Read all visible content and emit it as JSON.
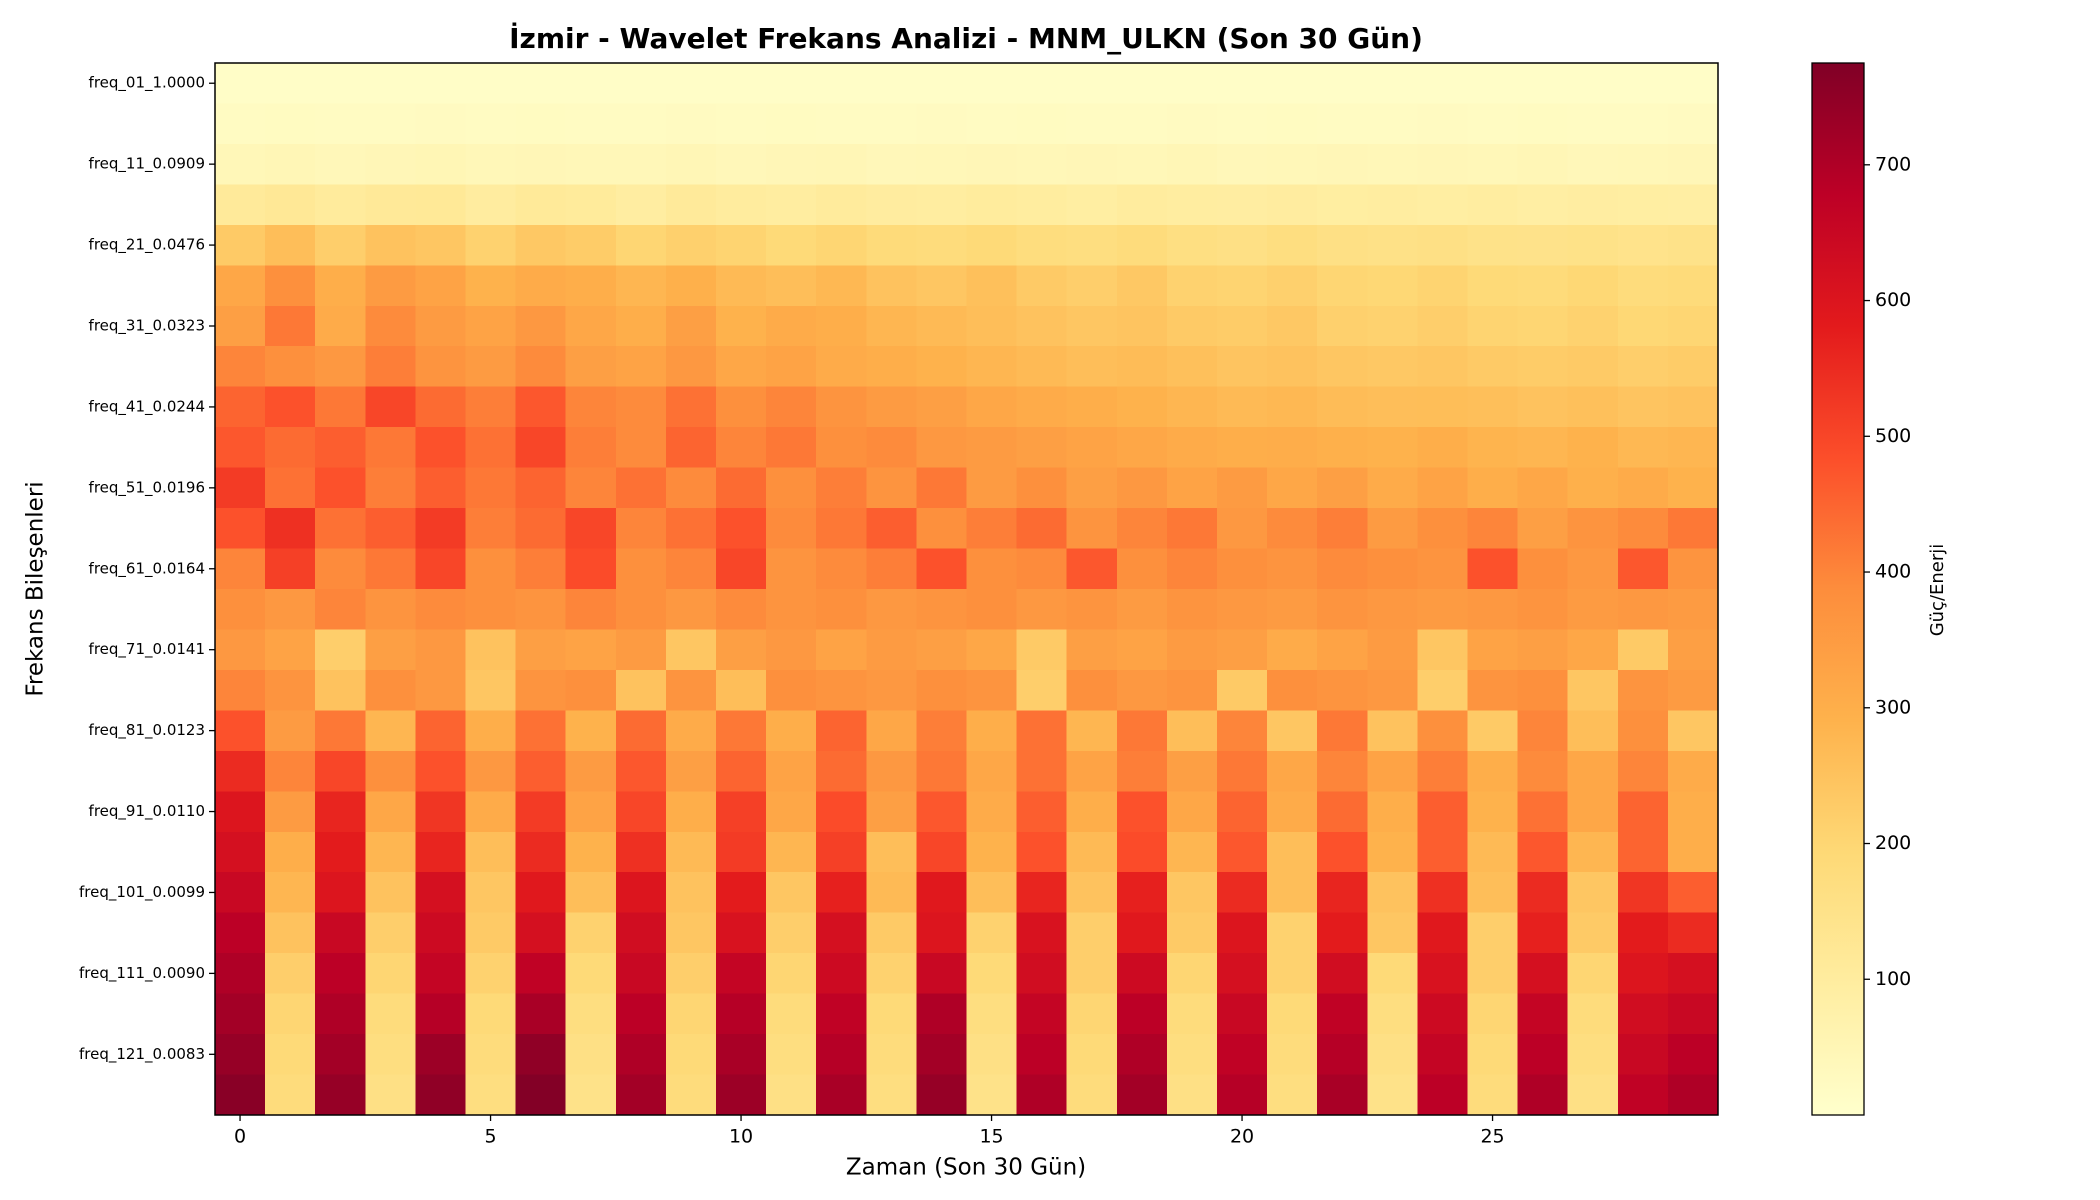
{
  "chart_data": {
    "type": "heatmap",
    "title": "İzmir - Wavelet Frekans Analizi - MNM_ULKN (Son 30 Gün)",
    "x_label": "Zaman (Son 30 Gün)",
    "y_label": "Frekans Bileşenleri",
    "colorbar_label": "Güç/Enerji",
    "colorscale": [
      "#ffffcc",
      "#ffeda0",
      "#fed976",
      "#feb24c",
      "#fd8d3c",
      "#fc4e2a",
      "#e31a1c",
      "#bd0026",
      "#800026"
    ],
    "xlim": [
      -0.5,
      29.5
    ],
    "xticks": [
      0,
      5,
      10,
      15,
      20,
      25
    ],
    "clim": [
      0,
      775
    ],
    "cticks": [
      100,
      200,
      300,
      400,
      500,
      600,
      700
    ],
    "y_categories": [
      "freq_01_1.0000",
      null,
      "freq_11_0.0909",
      null,
      "freq_21_0.0476",
      null,
      "freq_31_0.0323",
      null,
      "freq_41_0.0244",
      null,
      "freq_51_0.0196",
      null,
      "freq_61_0.0164",
      null,
      "freq_71_0.0141",
      null,
      "freq_81_0.0123",
      null,
      "freq_91_0.0110",
      null,
      "freq_101_0.0099",
      null,
      "freq_111_0.0090",
      null,
      "freq_121_0.0083",
      null
    ],
    "values": [
      [
        10,
        12,
        11,
        10,
        12,
        11,
        10,
        12,
        11,
        10,
        12,
        11,
        10,
        12,
        11,
        10,
        12,
        11,
        10,
        12,
        11,
        10,
        12,
        11,
        10,
        12,
        11,
        10,
        12,
        11
      ],
      [
        22,
        24,
        21,
        23,
        25,
        22,
        24,
        21,
        23,
        25,
        22,
        24,
        21,
        23,
        25,
        22,
        24,
        21,
        23,
        25,
        22,
        24,
        21,
        23,
        25,
        22,
        24,
        21,
        23,
        25
      ],
      [
        45,
        48,
        42,
        46,
        50,
        44,
        47,
        43,
        45,
        49,
        41,
        46,
        48,
        42,
        45,
        47,
        43,
        46,
        44,
        48,
        42,
        45,
        47,
        43,
        46,
        44,
        48,
        42,
        45,
        47
      ],
      [
        110,
        120,
        105,
        115,
        118,
        100,
        112,
        108,
        95,
        110,
        102,
        98,
        105,
        100,
        96,
        104,
        99,
        93,
        101,
        97,
        95,
        100,
        94,
        98,
        92,
        96,
        90,
        95,
        93,
        91
      ],
      [
        230,
        260,
        220,
        250,
        240,
        210,
        235,
        225,
        200,
        215,
        205,
        190,
        200,
        185,
        180,
        190,
        175,
        170,
        180,
        165,
        160,
        170,
        158,
        155,
        160,
        150,
        148,
        152,
        145,
        150
      ],
      [
        320,
        380,
        300,
        350,
        330,
        290,
        310,
        300,
        280,
        295,
        270,
        260,
        275,
        250,
        240,
        255,
        230,
        220,
        235,
        210,
        205,
        215,
        200,
        195,
        205,
        190,
        185,
        195,
        180,
        185
      ],
      [
        340,
        420,
        310,
        390,
        350,
        330,
        360,
        320,
        300,
        340,
        290,
        310,
        300,
        280,
        270,
        260,
        250,
        240,
        245,
        230,
        225,
        235,
        215,
        210,
        220,
        205,
        200,
        210,
        195,
        200
      ],
      [
        400,
        380,
        360,
        410,
        370,
        350,
        390,
        340,
        330,
        360,
        320,
        330,
        310,
        300,
        290,
        280,
        270,
        260,
        265,
        255,
        245,
        250,
        240,
        235,
        240,
        230,
        225,
        230,
        220,
        225
      ],
      [
        450,
        480,
        420,
        500,
        440,
        410,
        470,
        400,
        390,
        430,
        380,
        400,
        370,
        350,
        340,
        320,
        310,
        300,
        290,
        280,
        270,
        275,
        265,
        260,
        262,
        258,
        250,
        255,
        245,
        250
      ],
      [
        470,
        440,
        460,
        420,
        480,
        430,
        500,
        410,
        390,
        450,
        400,
        420,
        380,
        390,
        360,
        350,
        340,
        330,
        320,
        310,
        300,
        305,
        295,
        290,
        300,
        285,
        280,
        290,
        275,
        280
      ],
      [
        520,
        430,
        480,
        410,
        460,
        420,
        450,
        400,
        430,
        390,
        440,
        380,
        410,
        370,
        420,
        350,
        380,
        340,
        360,
        330,
        350,
        320,
        340,
        310,
        330,
        300,
        320,
        295,
        310,
        290
      ],
      [
        480,
        540,
        430,
        460,
        520,
        410,
        440,
        500,
        400,
        430,
        480,
        390,
        420,
        460,
        380,
        410,
        440,
        370,
        400,
        420,
        360,
        390,
        410,
        350,
        380,
        400,
        340,
        370,
        390,
        420
      ],
      [
        400,
        510,
        390,
        420,
        500,
        380,
        410,
        490,
        380,
        400,
        500,
        370,
        390,
        410,
        480,
        380,
        390,
        470,
        380,
        400,
        380,
        370,
        390,
        380,
        370,
        480,
        380,
        360,
        470,
        370
      ],
      [
        380,
        360,
        400,
        370,
        390,
        380,
        370,
        400,
        380,
        360,
        390,
        370,
        380,
        360,
        370,
        380,
        360,
        370,
        350,
        370,
        360,
        350,
        370,
        360,
        350,
        360,
        370,
        350,
        360,
        350
      ],
      [
        360,
        330,
        220,
        340,
        360,
        250,
        340,
        330,
        350,
        240,
        340,
        360,
        330,
        350,
        340,
        320,
        230,
        340,
        330,
        350,
        340,
        310,
        330,
        350,
        240,
        330,
        340,
        320,
        230,
        340
      ],
      [
        400,
        370,
        250,
        380,
        360,
        240,
        370,
        380,
        250,
        370,
        260,
        380,
        370,
        360,
        380,
        370,
        220,
        380,
        360,
        370,
        230,
        380,
        370,
        360,
        220,
        370,
        380,
        240,
        370,
        350
      ],
      [
        480,
        350,
        420,
        280,
        450,
        300,
        430,
        290,
        440,
        310,
        420,
        300,
        450,
        320,
        410,
        300,
        430,
        280,
        420,
        260,
        400,
        240,
        420,
        250,
        380,
        230,
        400,
        260,
        380,
        240
      ],
      [
        550,
        400,
        500,
        380,
        480,
        360,
        460,
        350,
        470,
        340,
        450,
        330,
        440,
        360,
        420,
        320,
        430,
        330,
        410,
        340,
        420,
        320,
        400,
        330,
        410,
        300,
        390,
        320,
        400,
        310
      ],
      [
        600,
        350,
        560,
        320,
        530,
        310,
        520,
        330,
        500,
        300,
        510,
        320,
        490,
        340,
        470,
        310,
        460,
        300,
        480,
        320,
        450,
        310,
        440,
        300,
        460,
        290,
        430,
        320,
        450,
        300
      ],
      [
        620,
        300,
        580,
        280,
        560,
        260,
        550,
        290,
        540,
        270,
        520,
        280,
        510,
        260,
        500,
        290,
        480,
        270,
        490,
        280,
        470,
        260,
        480,
        290,
        460,
        270,
        470,
        280,
        450,
        300
      ],
      [
        650,
        280,
        600,
        250,
        620,
        240,
        590,
        260,
        600,
        250,
        580,
        240,
        570,
        270,
        590,
        260,
        560,
        250,
        570,
        240,
        550,
        260,
        560,
        250,
        540,
        260,
        550,
        240,
        530,
        460
      ],
      [
        680,
        250,
        650,
        220,
        640,
        230,
        620,
        210,
        630,
        240,
        610,
        220,
        620,
        230,
        600,
        210,
        610,
        220,
        590,
        230,
        600,
        210,
        580,
        240,
        590,
        220,
        570,
        230,
        580,
        550
      ],
      [
        700,
        220,
        680,
        200,
        660,
        210,
        670,
        190,
        650,
        220,
        660,
        200,
        640,
        210,
        650,
        190,
        630,
        220,
        640,
        200,
        620,
        210,
        630,
        190,
        610,
        220,
        620,
        200,
        600,
        620
      ],
      [
        720,
        200,
        700,
        180,
        690,
        190,
        710,
        170,
        680,
        200,
        690,
        180,
        670,
        190,
        700,
        170,
        660,
        200,
        680,
        180,
        650,
        190,
        670,
        170,
        640,
        200,
        660,
        180,
        630,
        650
      ],
      [
        740,
        190,
        720,
        170,
        730,
        180,
        750,
        160,
        700,
        190,
        710,
        170,
        690,
        180,
        720,
        160,
        680,
        190,
        700,
        170,
        670,
        180,
        690,
        160,
        660,
        190,
        680,
        170,
        650,
        680
      ],
      [
        760,
        180,
        740,
        160,
        750,
        170,
        770,
        150,
        720,
        180,
        730,
        160,
        710,
        170,
        740,
        150,
        700,
        180,
        720,
        160,
        690,
        170,
        710,
        150,
        680,
        180,
        700,
        160,
        670,
        700
      ]
    ]
  }
}
